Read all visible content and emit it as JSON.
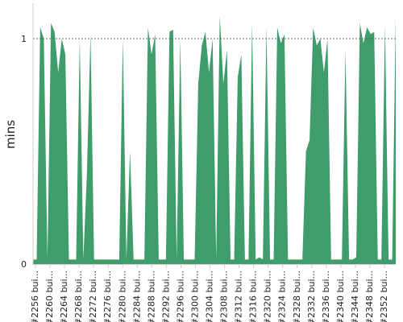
{
  "chart_data": {
    "type": "area",
    "title": "",
    "xlabel": "",
    "ylabel": "mins",
    "ylim": [
      0,
      1.15
    ],
    "yticks": [
      0,
      1
    ],
    "grid": false,
    "reference_line": {
      "y": 1,
      "style": "dotted"
    },
    "fill_color": "#3f9c6b",
    "x_tick_labels": [
      "#2256 bui...",
      "#2260 bui...",
      "#2264 bui...",
      "#2268 bui...",
      "#2272 bui...",
      "#2276 bui...",
      "#2280 bui...",
      "#2284 bui...",
      "#2288 bui...",
      "#2292 bui...",
      "#2296 bui...",
      "#2300 bui...",
      "#2304 bui...",
      "#2308 bui...",
      "#2312 bui...",
      "#2316 bui...",
      "#2320 bui...",
      "#2324 bui...",
      "#2328 bui...",
      "#2332 bui...",
      "#2336 bui...",
      "#2340 bui...",
      "#2344 bui...",
      "#2348 bui...",
      "#2352 bui..."
    ],
    "x_first_build": 2255,
    "x_last_build": 2356,
    "values": [
      0.02,
      0.02,
      1.05,
      1.0,
      0.02,
      1.07,
      1.03,
      0.85,
      1.0,
      0.93,
      0.02,
      0.02,
      0.02,
      1.0,
      0.02,
      0.4,
      1.02,
      0.02,
      0.02,
      0.02,
      0.02,
      0.02,
      0.02,
      0.02,
      0.02,
      1.0,
      0.02,
      0.5,
      0.02,
      0.02,
      0.02,
      0.02,
      1.05,
      0.93,
      1.02,
      0.02,
      0.02,
      0.02,
      1.03,
      1.04,
      0.02,
      1.0,
      0.02,
      0.02,
      0.02,
      0.02,
      0.8,
      0.97,
      1.03,
      0.85,
      1.0,
      0.02,
      1.1,
      0.8,
      0.95,
      0.02,
      0.02,
      0.83,
      0.93,
      0.02,
      0.02,
      1.07,
      0.02,
      0.03,
      0.02,
      1.05,
      0.02,
      0.02,
      1.05,
      0.98,
      1.02,
      0.02,
      0.02,
      0.02,
      0.02,
      0.02,
      0.5,
      0.55,
      1.05,
      0.97,
      1.0,
      0.85,
      1.0,
      0.02,
      0.02,
      0.02,
      0.02,
      0.95,
      0.02,
      0.02,
      0.03,
      1.07,
      0.98,
      1.05,
      1.02,
      1.03,
      0.02,
      0.02,
      1.06,
      0.02,
      0.02,
      1.1
    ]
  }
}
